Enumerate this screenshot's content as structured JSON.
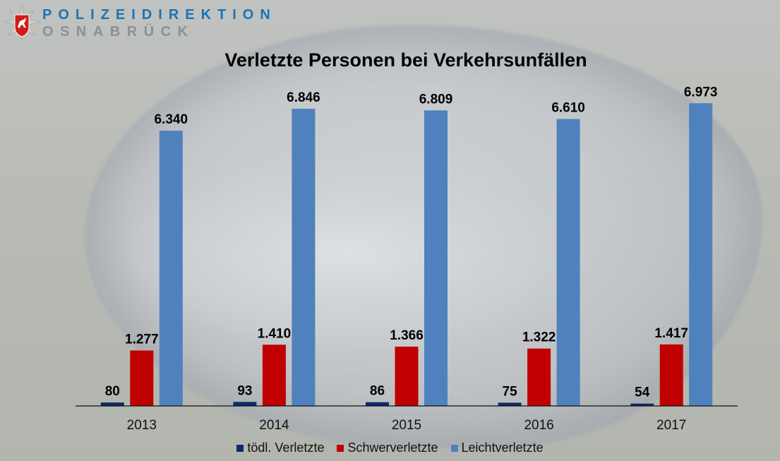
{
  "logo": {
    "line1": "POLIZEIDIREKTION",
    "line2": "OSNABRÜCK"
  },
  "chart_data": {
    "type": "bar",
    "title": "Verletzte Personen bei Verkehrsunfällen",
    "categories": [
      "2013",
      "2014",
      "2015",
      "2016",
      "2017"
    ],
    "series": [
      {
        "name": "tödl. Verletzte",
        "color": "#0d2a6b",
        "values": [
          80,
          93,
          86,
          75,
          54
        ],
        "labels": [
          "80",
          "93",
          "86",
          "75",
          "54"
        ]
      },
      {
        "name": "Schwerverletzte",
        "color": "#c00000",
        "values": [
          1277,
          1410,
          1366,
          1322,
          1417
        ],
        "labels": [
          "1.277",
          "1.410",
          "1.366",
          "1.322",
          "1.417"
        ]
      },
      {
        "name": "Leichtverletzte",
        "color": "#4f81bd",
        "values": [
          6340,
          6846,
          6809,
          6610,
          6973
        ],
        "labels": [
          "6.340",
          "6.846",
          "6.809",
          "6.610",
          "6.973"
        ]
      }
    ],
    "xlabel": "",
    "ylabel": "",
    "ylim": [
      0,
      7400
    ],
    "grid": false,
    "legend": "bottom"
  }
}
